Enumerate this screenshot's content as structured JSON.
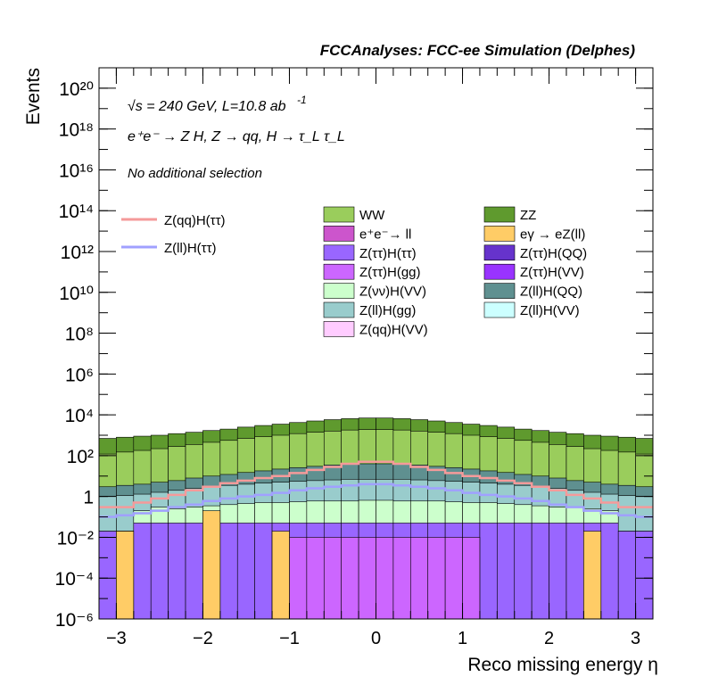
{
  "header": {
    "title": "FCCAnalyses: FCC-ee Simulation (Delphes)"
  },
  "annotations": {
    "line1": "√s = 240 GeV, L=10.8 ab",
    "line1_sup": "-1",
    "line2": "e⁺e⁻ → Z H, Z → qq, H → τ_L τ_L",
    "line3": "No additional selection"
  },
  "legend": {
    "lines": [
      {
        "label": "Z(qq)H(ττ)",
        "color": "#f59a9a"
      },
      {
        "label": "Z(ll)H(ττ)",
        "color": "#a0a0ff"
      }
    ],
    "fills": [
      {
        "label": "WW",
        "color": "#9acd5c"
      },
      {
        "label": "ZZ",
        "color": "#5f9a2e"
      },
      {
        "label": "e⁺e⁻→ ll",
        "color": "#cc55cc"
      },
      {
        "label": "eγ → eZ(ll)",
        "color": "#ffcc66"
      },
      {
        "label": "Z(ττ)H(ττ)",
        "color": "#9966ff"
      },
      {
        "label": "Z(ττ)H(QQ)",
        "color": "#6633cc"
      },
      {
        "label": "Z(ττ)H(gg)",
        "color": "#cc66ff"
      },
      {
        "label": "Z(ττ)H(VV)",
        "color": "#9933ff"
      },
      {
        "label": "Z(νν)H(VV)",
        "color": "#ccffcc"
      },
      {
        "label": "Z(ll)H(QQ)",
        "color": "#5f9090"
      },
      {
        "label": "Z(ll)H(gg)",
        "color": "#99cccc"
      },
      {
        "label": "Z(ll)H(VV)",
        "color": "#ccffff"
      },
      {
        "label": "Z(qq)H(VV)",
        "color": "#ffccff"
      }
    ]
  },
  "chart_data": {
    "type": "area",
    "xlabel": "Reco missing energy η",
    "ylabel": "Events",
    "xlim": [
      -3.2,
      3.2
    ],
    "ylim": [
      1e-06,
      1e+21
    ],
    "ylog": true,
    "x_ticks": [
      "−3",
      "−2",
      "−1",
      "0",
      "1",
      "2",
      "3"
    ],
    "x_tick_values": [
      -3,
      -2,
      -1,
      0,
      1,
      2,
      3
    ],
    "y_ticks": [
      "10⁻⁶",
      "10⁻⁴",
      "10⁻²",
      "1",
      "10²",
      "10⁴",
      "10⁶",
      "10⁸",
      "10¹⁰",
      "10¹²",
      "10¹⁴",
      "10¹⁶",
      "10¹⁸",
      "10²⁰"
    ],
    "y_tick_exponents": [
      -6,
      -4,
      -2,
      0,
      2,
      4,
      6,
      8,
      10,
      12,
      14,
      16,
      18,
      20
    ],
    "bin_count": 32,
    "bin_edges": [
      -3.2,
      -3.0,
      -2.8,
      -2.6,
      -2.4,
      -2.2,
      -2.0,
      -1.8,
      -1.6,
      -1.4,
      -1.2,
      -1.0,
      -0.8,
      -0.6,
      -0.4,
      -0.2,
      0.0,
      0.2,
      0.4,
      0.6,
      0.8,
      1.0,
      1.2,
      1.4,
      1.6,
      1.8,
      2.0,
      2.2,
      2.4,
      2.6,
      2.8,
      3.0,
      3.2
    ],
    "stack_tops": [
      {
        "name": "Z(νν)H(VV)",
        "values": [
          0.02,
          0.02,
          0.2,
          0.3,
          0.25,
          0.3,
          0.35,
          0.4,
          0.45,
          0.5,
          0.5,
          0.55,
          0.6,
          0.6,
          0.6,
          0.65,
          0.65,
          0.6,
          0.6,
          0.6,
          0.55,
          0.5,
          0.5,
          0.45,
          0.4,
          0.35,
          0.3,
          0.3,
          0.25,
          0.2,
          0.02,
          0.02
        ]
      },
      {
        "name": "Z(ll)H(gg)",
        "values": [
          1.0,
          1.1,
          1.3,
          1.6,
          2.0,
          2.5,
          3.0,
          3.5,
          4.0,
          4.5,
          5.0,
          5.5,
          6.0,
          6.5,
          7.0,
          7.0,
          7.0,
          7.0,
          6.5,
          6.0,
          5.5,
          5.0,
          4.5,
          4.0,
          3.5,
          3.0,
          2.5,
          2.0,
          1.6,
          1.3,
          1.1,
          1.0
        ]
      },
      {
        "name": "Z(ll)H(QQ)",
        "values": [
          3.0,
          3.5,
          4.0,
          5.0,
          6.0,
          8.0,
          10.0,
          12.0,
          15.0,
          18.0,
          22.0,
          26.0,
          30.0,
          35.0,
          38.0,
          40.0,
          40.0,
          38.0,
          35.0,
          30.0,
          26.0,
          22.0,
          18.0,
          15.0,
          12.0,
          10.0,
          8.0,
          6.0,
          5.0,
          4.0,
          3.5,
          3.0
        ]
      },
      {
        "name": "WW",
        "values": [
          120,
          150,
          180,
          220,
          280,
          350,
          450,
          560,
          700,
          850,
          1000,
          1200,
          1400,
          1600,
          1800,
          1900,
          1900,
          1800,
          1600,
          1400,
          1200,
          1000,
          850,
          700,
          560,
          450,
          350,
          280,
          220,
          180,
          150,
          120
        ]
      },
      {
        "name": "ZZ",
        "values": [
          700,
          800,
          900,
          1000,
          1200,
          1400,
          1700,
          2000,
          2500,
          3000,
          3500,
          4200,
          5000,
          5800,
          6500,
          7000,
          7000,
          6500,
          5800,
          5000,
          4200,
          3500,
          3000,
          2500,
          2000,
          1700,
          1400,
          1200,
          1000,
          900,
          800,
          700
        ]
      }
    ],
    "low_bins": [
      {
        "name": "Z(ττ)H(ττ)",
        "values": [
          0.02,
          0.02,
          0.05,
          0.05,
          0.05,
          0.05,
          0.05,
          0.05,
          0.05,
          0.05,
          0.05,
          0.05,
          0.05,
          0.05,
          0.05,
          0.05,
          0.05,
          0.05,
          0.05,
          0.05,
          0.05,
          0.05,
          0.05,
          0.05,
          0.05,
          0.05,
          0.05,
          0.05,
          0.05,
          0.05,
          0.02,
          0.02
        ]
      },
      {
        "name": "Z(ττ)H(gg)",
        "values": [
          null,
          null,
          null,
          null,
          null,
          null,
          null,
          null,
          null,
          null,
          null,
          0.01,
          0.01,
          0.01,
          0.01,
          0.01,
          0.01,
          0.01,
          0.01,
          0.01,
          0.01,
          0.01,
          null,
          null,
          null,
          null,
          null,
          null,
          null,
          null,
          null,
          null
        ]
      },
      {
        "name": "eγ → eZ(ll)",
        "values": [
          null,
          0.02,
          null,
          null,
          null,
          null,
          0.2,
          null,
          null,
          null,
          0.02,
          null,
          null,
          null,
          null,
          null,
          null,
          null,
          null,
          null,
          null,
          null,
          null,
          null,
          null,
          null,
          null,
          null,
          0.02,
          null,
          null,
          null
        ]
      }
    ],
    "series": [
      {
        "name": "Z(qq)H(ττ)",
        "values": [
          0.3,
          0.3,
          0.5,
          0.8,
          1.2,
          2.0,
          3.0,
          4.5,
          6.0,
          8.0,
          10,
          14,
          20,
          28,
          40,
          50,
          50,
          40,
          28,
          20,
          14,
          10,
          8.0,
          6.0,
          4.5,
          3.0,
          2.0,
          1.2,
          0.8,
          0.5,
          0.3,
          0.3
        ]
      },
      {
        "name": "Z(ll)H(ττ)",
        "values": [
          0.1,
          0.12,
          0.15,
          0.2,
          0.3,
          0.4,
          0.6,
          0.8,
          1.0,
          1.2,
          1.5,
          2.0,
          2.5,
          3.0,
          3.5,
          4.0,
          4.0,
          3.5,
          3.0,
          2.5,
          2.0,
          1.5,
          1.2,
          1.0,
          0.8,
          0.6,
          0.4,
          0.3,
          0.2,
          0.15,
          0.12,
          0.1
        ]
      }
    ]
  }
}
